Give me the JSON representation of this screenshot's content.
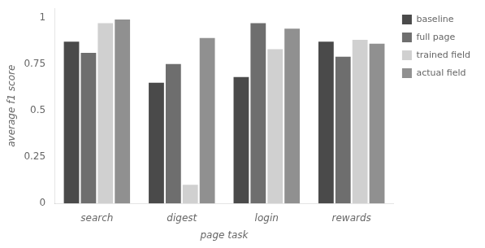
{
  "chart_data": {
    "type": "bar",
    "xlabel": "page task",
    "ylabel": "average f1 score",
    "categories": [
      "search",
      "digest",
      "login",
      "rewards"
    ],
    "series": [
      {
        "name": "baseline",
        "color": "#4a4a4a",
        "values": [
          0.87,
          0.65,
          0.68,
          0.87
        ]
      },
      {
        "name": "full page",
        "color": "#6e6e6e",
        "values": [
          0.81,
          0.75,
          0.97,
          0.79
        ]
      },
      {
        "name": "trained field",
        "color": "#d0d0d0",
        "values": [
          0.97,
          0.1,
          0.83,
          0.88
        ]
      },
      {
        "name": "actual field",
        "color": "#909090",
        "values": [
          0.99,
          0.89,
          0.94,
          0.86
        ]
      }
    ],
    "ylim": [
      0,
      1.05
    ],
    "yticks": [
      0,
      0.25,
      0.5,
      0.75,
      1
    ],
    "grid": false,
    "legend": "right"
  }
}
